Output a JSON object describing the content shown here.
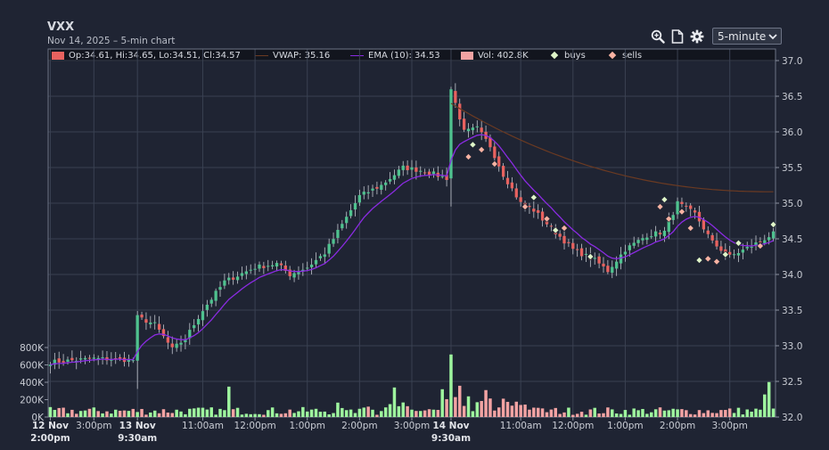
{
  "header": {
    "title": "VXX",
    "subtitle": "Nov 14, 2025 – 5-min chart",
    "interval": "5-minute"
  },
  "legend": {
    "ohlc": "Op:34.61, Hi:34.65, Lo:34.51, Cl:34.57",
    "vwap": "VWAP: 35.16",
    "ema": "EMA (10): 34.53",
    "vol": "Vol: 402.8K",
    "buys": "buys",
    "sells": "sells"
  },
  "colors": {
    "up": "#4fc28f",
    "down": "#e8625f",
    "vol_up": "#9ef59e",
    "vol_down": "#f2a3a3",
    "vwap": "#6b3a22",
    "ema": "#8a2be2",
    "buy": "#dff5c8",
    "sell": "#f7b2a2",
    "grid": "#3a4152"
  },
  "chart_data": {
    "type": "candlestick",
    "price_ticks": [
      "37.0",
      "36.5",
      "36.0",
      "35.5",
      "35.0",
      "34.5",
      "34.0",
      "33.5",
      "33.0",
      "32.5",
      "32.0"
    ],
    "price_range": [
      32.0,
      37.0
    ],
    "volume_ticks": [
      "800K",
      "600K",
      "400K",
      "200K",
      "0K"
    ],
    "volume_range": [
      0,
      800000
    ],
    "time_labels": [
      {
        "l1": "12 Nov",
        "l2": "2:00pm",
        "bold": true
      },
      {
        "l1": "3:00pm",
        "l2": "",
        "bold": false
      },
      {
        "l1": "13 Nov",
        "l2": "9:30am",
        "bold": true
      },
      {
        "l1": "11:00am",
        "l2": "",
        "bold": false
      },
      {
        "l1": "12:00pm",
        "l2": "",
        "bold": false
      },
      {
        "l1": "1:00pm",
        "l2": "",
        "bold": false
      },
      {
        "l1": "2:00pm",
        "l2": "",
        "bold": false
      },
      {
        "l1": "3:00pm",
        "l2": "",
        "bold": false
      },
      {
        "l1": "14 Nov",
        "l2": "9:30am",
        "bold": true
      },
      {
        "l1": "11:00am",
        "l2": "",
        "bold": false
      },
      {
        "l1": "12:00pm",
        "l2": "",
        "bold": false
      },
      {
        "l1": "1:00pm",
        "l2": "",
        "bold": false
      },
      {
        "l1": "2:00pm",
        "l2": "",
        "bold": false
      },
      {
        "l1": "3:00pm",
        "l2": "",
        "bold": false
      }
    ],
    "time_label_bar_index": [
      0,
      10,
      20,
      35,
      47,
      59,
      71,
      83,
      92,
      108,
      120,
      132,
      144,
      156
    ],
    "close_path": [
      [
        0,
        32.77
      ],
      [
        10,
        32.82
      ],
      [
        19,
        32.8
      ],
      [
        20,
        33.4
      ],
      [
        24,
        33.3
      ],
      [
        28,
        32.95
      ],
      [
        31,
        33.1
      ],
      [
        35,
        33.5
      ],
      [
        40,
        33.9
      ],
      [
        47,
        34.1
      ],
      [
        52,
        34.15
      ],
      [
        55,
        34.0
      ],
      [
        59,
        34.1
      ],
      [
        63,
        34.3
      ],
      [
        68,
        34.8
      ],
      [
        71,
        35.1
      ],
      [
        76,
        35.25
      ],
      [
        81,
        35.5
      ],
      [
        86,
        35.45
      ],
      [
        91,
        35.35
      ],
      [
        92,
        36.6
      ],
      [
        95,
        36.0
      ],
      [
        98,
        36.05
      ],
      [
        101,
        35.8
      ],
      [
        104,
        35.4
      ],
      [
        108,
        35.0
      ],
      [
        111,
        34.9
      ],
      [
        115,
        34.65
      ],
      [
        120,
        34.35
      ],
      [
        125,
        34.2
      ],
      [
        128,
        34.05
      ],
      [
        132,
        34.35
      ],
      [
        137,
        34.55
      ],
      [
        141,
        34.6
      ],
      [
        144,
        35.0
      ],
      [
        148,
        34.85
      ],
      [
        152,
        34.45
      ],
      [
        156,
        34.25
      ],
      [
        161,
        34.4
      ],
      [
        166,
        34.57
      ]
    ],
    "vwap_start": {
      "bar": 92,
      "price": 36.4
    },
    "vwap_end": {
      "bar": 166,
      "price": 35.16
    },
    "ema_last": 34.53,
    "last_volume": 402800,
    "volume_spikes": [
      [
        92,
        720000
      ],
      [
        90,
        320000
      ],
      [
        41,
        350000
      ],
      [
        79,
        340000
      ],
      [
        94,
        360000
      ],
      [
        100,
        310000
      ],
      [
        165,
        402800
      ],
      [
        164,
        260000
      ]
    ],
    "buys": [
      [
        97,
        35.82
      ],
      [
        111,
        35.08
      ],
      [
        116,
        34.62
      ],
      [
        124,
        34.25
      ],
      [
        141,
        35.05
      ],
      [
        149,
        34.2
      ],
      [
        155,
        34.28
      ],
      [
        158,
        34.44
      ],
      [
        166,
        34.7
      ]
    ],
    "sells": [
      [
        96,
        35.65
      ],
      [
        99,
        35.75
      ],
      [
        102,
        35.55
      ],
      [
        109,
        34.95
      ],
      [
        114,
        34.78
      ],
      [
        118,
        34.65
      ],
      [
        140,
        34.95
      ],
      [
        142,
        34.78
      ],
      [
        145,
        34.88
      ],
      [
        147,
        34.65
      ],
      [
        151,
        34.22
      ],
      [
        153,
        34.18
      ],
      [
        163,
        34.4
      ]
    ]
  }
}
